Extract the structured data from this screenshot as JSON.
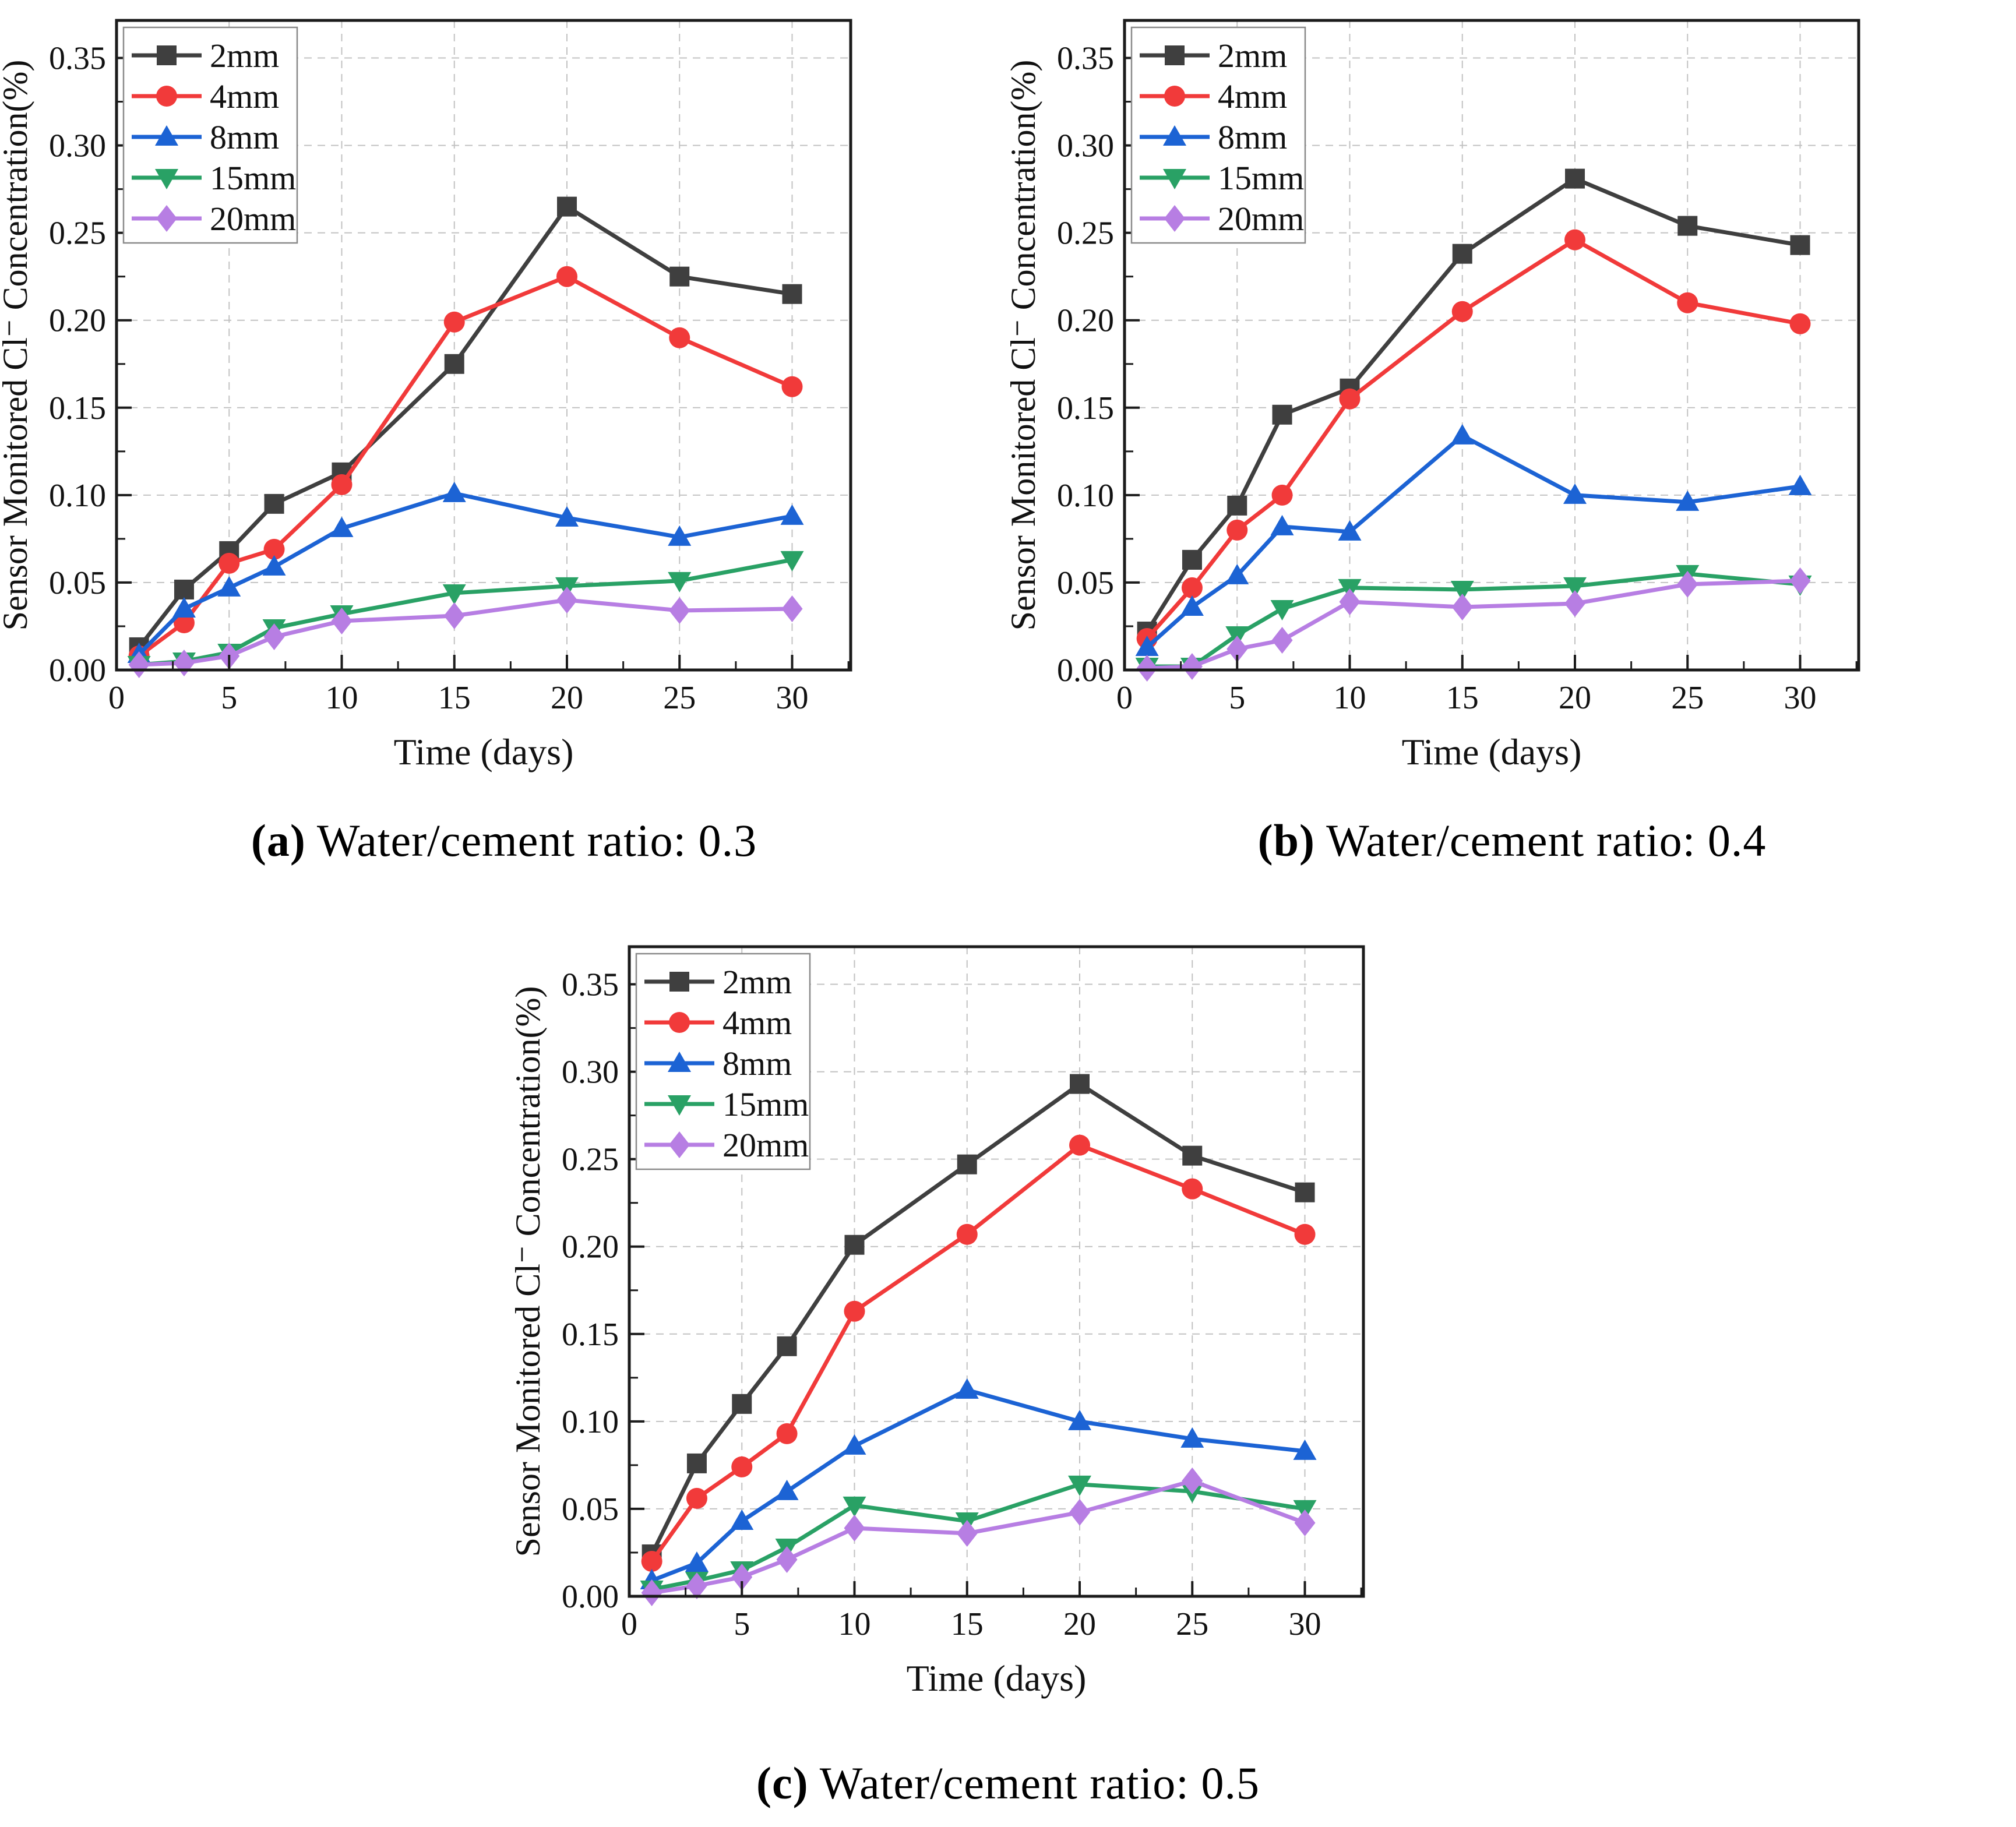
{
  "page": {
    "background": "#ffffff"
  },
  "captions": {
    "a": {
      "label": "(a)",
      "text": " Water/cement ratio: 0.3"
    },
    "b": {
      "label": "(b)",
      "text": " Water/cement ratio: 0.4"
    },
    "c": {
      "label": "(c)",
      "text": " Water/cement ratio: 0.5"
    }
  },
  "axis_style": {
    "grid_color": "#c2c2c2",
    "spine_color": "#1b1b1b",
    "tick_color": "#1b1b1b"
  },
  "chart_data": [
    {
      "id": "a",
      "type": "line",
      "panel": "a",
      "caption": "Water/cement ratio: 0.3",
      "xlabel": "Time (days)",
      "ylabel": "Sensor Monitored  Cl⁻ Concentration(%)",
      "xlim": [
        0,
        32.6
      ],
      "ylim": [
        0,
        0.3715
      ],
      "xticks": [
        0,
        5,
        10,
        15,
        20,
        25,
        30
      ],
      "yticks": [
        0.0,
        0.05,
        0.1,
        0.15,
        0.2,
        0.25,
        0.3,
        0.35
      ],
      "x_minor_step": 2.5,
      "y_minor_step": 0.025,
      "grid": true,
      "legend_position": "top-left",
      "x": [
        1,
        3,
        5,
        7,
        10,
        15,
        20,
        25,
        30
      ],
      "series": [
        {
          "name": "2mm",
          "color": "#3f3f3f",
          "marker": "square",
          "values": [
            0.013,
            0.046,
            0.068,
            0.095,
            0.113,
            0.175,
            0.265,
            0.225,
            0.215
          ]
        },
        {
          "name": "4mm",
          "color": "#f13a3a",
          "marker": "circle",
          "values": [
            0.008,
            0.027,
            0.061,
            0.069,
            0.106,
            0.199,
            0.225,
            0.19,
            0.162
          ]
        },
        {
          "name": "8mm",
          "color": "#1c63d4",
          "marker": "triangle-up",
          "values": [
            0.009,
            0.035,
            0.047,
            0.059,
            0.081,
            0.101,
            0.087,
            0.076,
            0.088
          ]
        },
        {
          "name": "15mm",
          "color": "#29a165",
          "marker": "triangle-down",
          "values": [
            0.003,
            0.005,
            0.01,
            0.024,
            0.032,
            0.044,
            0.048,
            0.051,
            0.063
          ]
        },
        {
          "name": "20mm",
          "color": "#b77ee3",
          "marker": "diamond",
          "values": [
            0.003,
            0.004,
            0.008,
            0.019,
            0.028,
            0.031,
            0.04,
            0.034,
            0.035
          ]
        }
      ]
    },
    {
      "id": "b",
      "type": "line",
      "panel": "b",
      "caption": "Water/cement ratio: 0.4",
      "xlabel": "Time (days)",
      "ylabel": "Sensor Monitored  Cl⁻ Concentration(%)",
      "xlim": [
        0,
        32.6
      ],
      "ylim": [
        0,
        0.3715
      ],
      "xticks": [
        0,
        5,
        10,
        15,
        20,
        25,
        30
      ],
      "yticks": [
        0.0,
        0.05,
        0.1,
        0.15,
        0.2,
        0.25,
        0.3,
        0.35
      ],
      "x_minor_step": 2.5,
      "y_minor_step": 0.025,
      "grid": true,
      "legend_position": "top-left",
      "x": [
        1,
        3,
        5,
        7,
        10,
        15,
        20,
        25,
        30
      ],
      "series": [
        {
          "name": "2mm",
          "color": "#3f3f3f",
          "marker": "square",
          "values": [
            0.022,
            0.063,
            0.094,
            0.146,
            0.161,
            0.238,
            0.281,
            0.254,
            0.243
          ]
        },
        {
          "name": "4mm",
          "color": "#f13a3a",
          "marker": "circle",
          "values": [
            0.018,
            0.047,
            0.08,
            0.1,
            0.155,
            0.205,
            0.246,
            0.21,
            0.198
          ]
        },
        {
          "name": "8mm",
          "color": "#1c63d4",
          "marker": "triangle-up",
          "values": [
            0.013,
            0.036,
            0.054,
            0.082,
            0.079,
            0.134,
            0.1,
            0.096,
            0.105
          ]
        },
        {
          "name": "15mm",
          "color": "#29a165",
          "marker": "triangle-down",
          "values": [
            0.002,
            0.002,
            0.02,
            0.035,
            0.047,
            0.046,
            0.048,
            0.055,
            0.049
          ]
        },
        {
          "name": "20mm",
          "color": "#b77ee3",
          "marker": "diamond",
          "values": [
            0.001,
            0.002,
            0.012,
            0.017,
            0.039,
            0.036,
            0.038,
            0.049,
            0.051
          ]
        }
      ]
    },
    {
      "id": "c",
      "type": "line",
      "panel": "c",
      "caption": "Water/cement ratio: 0.5",
      "xlabel": "Time (days)",
      "ylabel": "Sensor Monitored  Cl⁻ Concentration(%)",
      "xlim": [
        0,
        32.6
      ],
      "ylim": [
        0,
        0.3715
      ],
      "xticks": [
        0,
        5,
        10,
        15,
        20,
        25,
        30
      ],
      "yticks": [
        0.0,
        0.05,
        0.1,
        0.15,
        0.2,
        0.25,
        0.3,
        0.35
      ],
      "x_minor_step": 2.5,
      "y_minor_step": 0.025,
      "grid": true,
      "legend_position": "top-left",
      "x": [
        1,
        3,
        5,
        7,
        10,
        15,
        20,
        25,
        30
      ],
      "series": [
        {
          "name": "2mm",
          "color": "#3f3f3f",
          "marker": "square",
          "values": [
            0.024,
            0.076,
            0.11,
            0.143,
            0.201,
            0.247,
            0.293,
            0.252,
            0.231
          ]
        },
        {
          "name": "4mm",
          "color": "#f13a3a",
          "marker": "circle",
          "values": [
            0.02,
            0.056,
            0.074,
            0.093,
            0.163,
            0.207,
            0.258,
            0.233,
            0.207
          ]
        },
        {
          "name": "8mm",
          "color": "#1c63d4",
          "marker": "triangle-up",
          "values": [
            0.009,
            0.019,
            0.043,
            0.06,
            0.086,
            0.118,
            0.1,
            0.09,
            0.083
          ]
        },
        {
          "name": "15mm",
          "color": "#29a165",
          "marker": "triangle-down",
          "values": [
            0.004,
            0.009,
            0.015,
            0.028,
            0.052,
            0.043,
            0.064,
            0.06,
            0.05
          ]
        },
        {
          "name": "20mm",
          "color": "#b77ee3",
          "marker": "diamond",
          "values": [
            0.002,
            0.006,
            0.011,
            0.021,
            0.039,
            0.036,
            0.048,
            0.066,
            0.042
          ]
        }
      ]
    }
  ]
}
